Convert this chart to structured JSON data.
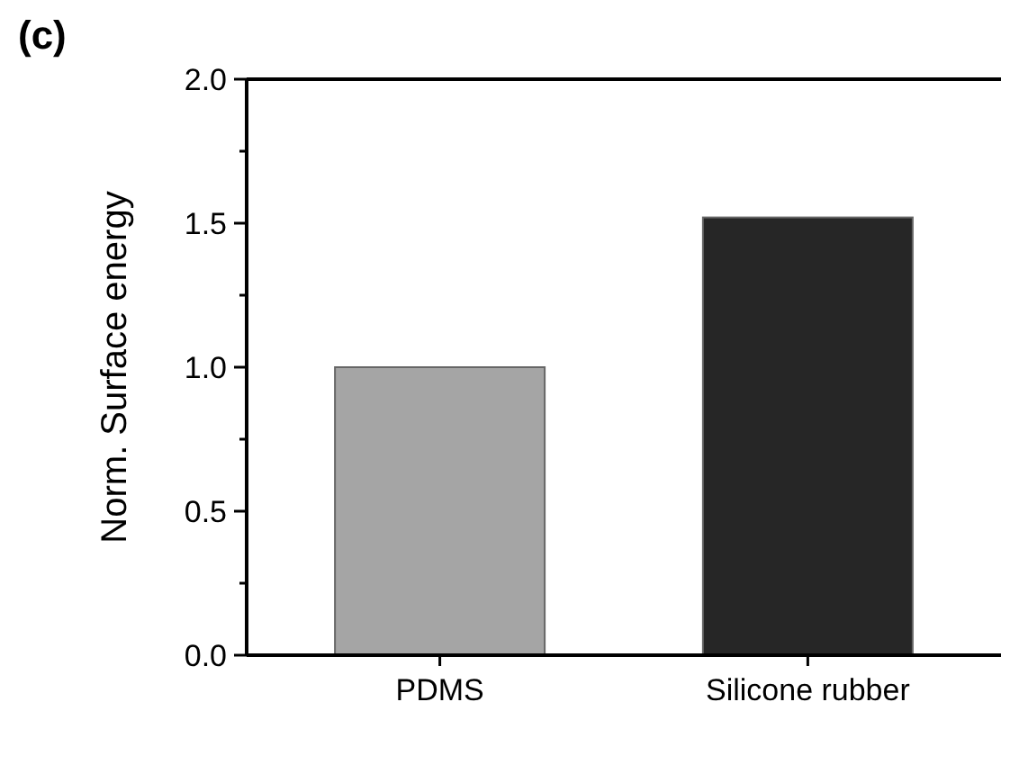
{
  "chart_data": {
    "type": "bar",
    "title": "(c)",
    "ylabel": "Norm. Surface energy",
    "categories": [
      "PDMS",
      "Silicone rubber"
    ],
    "values": [
      1.0,
      1.52
    ],
    "colors": [
      "#a5a5a5",
      "#262626"
    ],
    "ylim": [
      0,
      2
    ],
    "yticks": [
      {
        "value": 0,
        "label": "0.0"
      },
      {
        "value": 0.25,
        "label": null
      },
      {
        "value": 0.5,
        "label": "0.5"
      },
      {
        "value": 0.75,
        "label": null
      },
      {
        "value": 1,
        "label": "1.0"
      },
      {
        "value": 1.25,
        "label": null
      },
      {
        "value": 1.5,
        "label": "1.5"
      },
      {
        "value": 1.75,
        "label": null
      },
      {
        "value": 2,
        "label": "2.0"
      }
    ]
  }
}
